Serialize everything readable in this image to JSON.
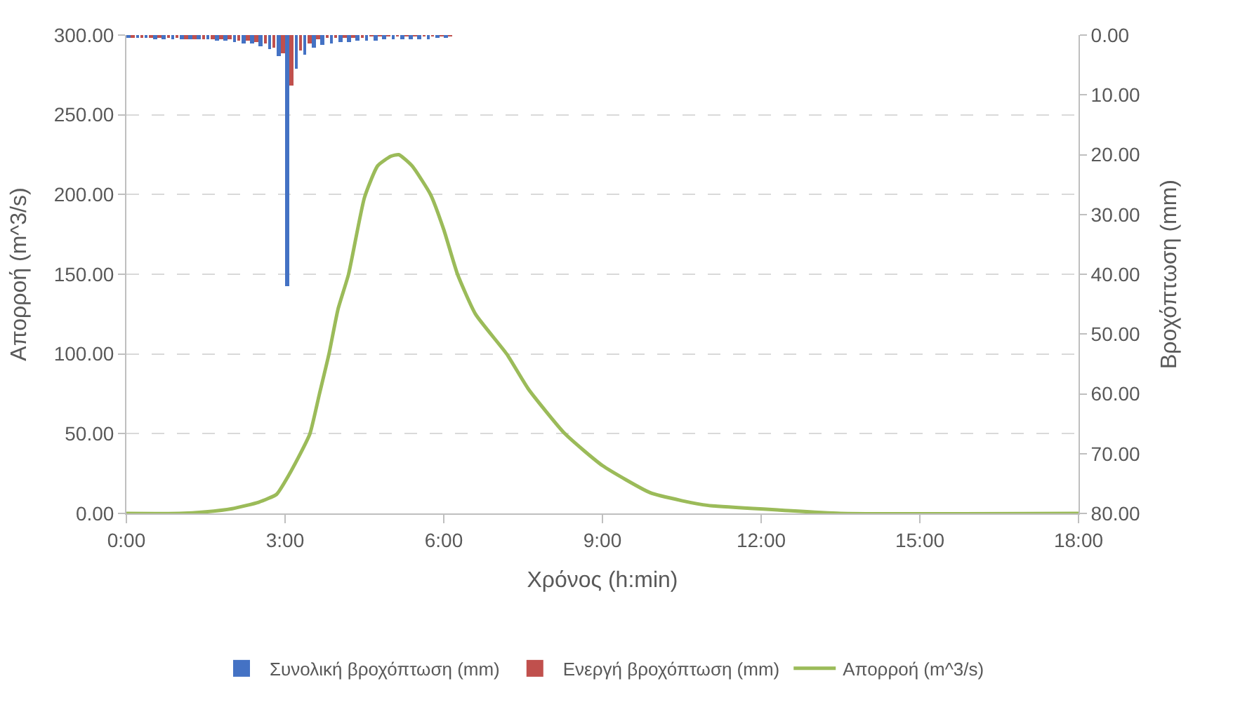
{
  "chart_data": {
    "type": "line",
    "xlabel": "Χρόνος (h:min)",
    "ylabel": "Απορροή (m^3/s)",
    "y2label": "Βροχόπτωση (mm)",
    "xlim": [
      0,
      18
    ],
    "xticks": [
      {
        "value": 0,
        "label": "0:00"
      },
      {
        "value": 3,
        "label": "3:00"
      },
      {
        "value": 6,
        "label": "6:00"
      },
      {
        "value": 9,
        "label": "9:00"
      },
      {
        "value": 12,
        "label": "12:00"
      },
      {
        "value": 15,
        "label": "15:00"
      },
      {
        "value": 18,
        "label": "18:00"
      }
    ],
    "ylim": [
      0,
      300
    ],
    "yticks": [
      {
        "value": 0,
        "label": "0.00"
      },
      {
        "value": 50,
        "label": "50.00"
      },
      {
        "value": 100,
        "label": "100.00"
      },
      {
        "value": 150,
        "label": "150.00"
      },
      {
        "value": 200,
        "label": "200.00"
      },
      {
        "value": 250,
        "label": "250.00"
      },
      {
        "value": 300,
        "label": "300.00"
      }
    ],
    "y2lim": [
      80,
      0
    ],
    "y2ticks": [
      {
        "value": 0,
        "label": "0.00"
      },
      {
        "value": 10,
        "label": "10.00"
      },
      {
        "value": 20,
        "label": "20.00"
      },
      {
        "value": 30,
        "label": "30.00"
      },
      {
        "value": 40,
        "label": "40.00"
      },
      {
        "value": 50,
        "label": "50.00"
      },
      {
        "value": 60,
        "label": "60.00"
      },
      {
        "value": 70,
        "label": "70.00"
      },
      {
        "value": 80,
        "label": "80.00"
      }
    ],
    "grid": "y",
    "legend": "bottom",
    "series": [
      {
        "name": "Συνολική βροχόπτωση (mm)",
        "type": "bar",
        "axis": "y2",
        "color": "#4472c4",
        "x": [
          0.0833,
          0.25,
          0.4167,
          0.5833,
          0.75,
          0.9167,
          1.0833,
          1.25,
          1.4167,
          1.5833,
          1.75,
          1.9167,
          2.0833,
          2.25,
          2.4167,
          2.5833,
          2.75,
          2.9167,
          3.0833,
          3.25,
          3.4167,
          3.5833,
          3.75,
          3.9167,
          4.0833,
          4.25,
          4.4167,
          4.5833,
          4.75,
          4.9167,
          5.0833,
          5.25,
          5.4167,
          5.5833,
          5.75,
          5.9167,
          6.0833
        ],
        "values": [
          0.5,
          0.5,
          0.5,
          0.6,
          0.6,
          0.6,
          0.7,
          0.7,
          0.8,
          0.8,
          0.9,
          1.0,
          1.1,
          1.3,
          1.5,
          1.8,
          2.3,
          3.5,
          42,
          5.7,
          3.2,
          2.0,
          1.6,
          1.4,
          1.2,
          1.1,
          1.0,
          0.9,
          0.9,
          0.8,
          0.8,
          0.7,
          0.7,
          0.6,
          0.6,
          0.5,
          0.5
        ]
      },
      {
        "name": "Ενεργή βροχόπτωση (mm)",
        "type": "bar",
        "axis": "y2",
        "color": "#c0504d",
        "x": [
          0.0833,
          0.25,
          0.4167,
          0.5833,
          0.75,
          0.9167,
          1.0833,
          1.25,
          1.4167,
          1.5833,
          1.75,
          1.9167,
          2.0833,
          2.25,
          2.4167,
          2.5833,
          2.75,
          2.9167,
          3.0833,
          3.25,
          3.4167,
          3.5833,
          3.75,
          3.9167,
          4.0833,
          4.25,
          4.4167,
          4.5833,
          4.75,
          4.9167,
          5.0833,
          5.25,
          5.4167,
          5.5833,
          5.75,
          5.9167,
          6.0833
        ],
        "values": [
          0.4,
          0.4,
          0.4,
          0.5,
          0.5,
          0.5,
          0.6,
          0.6,
          0.6,
          0.7,
          0.7,
          0.8,
          0.9,
          1.0,
          1.2,
          1.5,
          2.0,
          3.0,
          8.5,
          2.5,
          1.5,
          0.8,
          0.5,
          0.4,
          0.3,
          0.3,
          0.3,
          0.2,
          0.2,
          0.2,
          0.2,
          0.2,
          0.2,
          0.2,
          0.2,
          0.2,
          0.2
        ]
      },
      {
        "name": "Απορροή (m^3/s)",
        "color": "#9bbb59",
        "x": [
          0,
          1.0,
          1.5,
          2.0,
          2.5,
          2.84,
          3.0,
          3.25,
          3.47,
          3.65,
          3.83,
          4.0,
          4.2,
          4.5,
          4.75,
          5.0,
          5.15,
          5.4,
          5.75,
          6.0,
          6.26,
          6.6,
          7.19,
          7.6,
          8.29,
          9.0,
          9.9,
          10.5,
          11,
          12.4,
          13.5,
          18
        ],
        "values": [
          0,
          0,
          1,
          3,
          7,
          12,
          20,
          35,
          50,
          75,
          100,
          128,
          150,
          198,
          218,
          224,
          225,
          218,
          200,
          178,
          150,
          125,
          100,
          78,
          50,
          30,
          13,
          8,
          5,
          2,
          0,
          0
        ]
      }
    ]
  }
}
